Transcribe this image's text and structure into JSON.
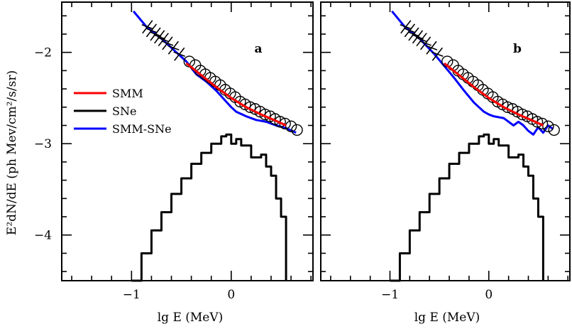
{
  "chart_data": {
    "type": "line",
    "xlabel": "lg E (MeV)",
    "ylabel": "E²dN/dE (ph Mev/cm²/s/sr)",
    "xlim": [
      -1.7,
      0.82
    ],
    "ylim": [
      -4.5,
      -1.45
    ],
    "x_ticks": [
      "-1",
      "0"
    ],
    "y_ticks": [
      "-2",
      "-3",
      "-4"
    ],
    "grid": false,
    "legend_placement": "left-middle (panel a)",
    "legend": [
      {
        "label": "SMM",
        "color": "#ff0000"
      },
      {
        "label": "SNe",
        "color": "#000000"
      },
      {
        "label": "SMM-SNe",
        "color": "#0000ff"
      }
    ],
    "panels": [
      {
        "label": "a",
        "series": [
          {
            "name": "SMM",
            "color": "#ff0000",
            "x": [
              -0.45,
              -0.3,
              -0.15,
              0.0,
              0.15,
              0.3,
              0.45,
              0.55
            ],
            "y": [
              -2.12,
              -2.25,
              -2.38,
              -2.5,
              -2.6,
              -2.68,
              -2.75,
              -2.8
            ]
          },
          {
            "name": "SMM-SNe",
            "color": "#0000ff",
            "x": [
              -0.98,
              -0.85,
              -0.7,
              -0.55,
              -0.45,
              -0.35,
              -0.25,
              -0.15,
              -0.05,
              0.0,
              0.05,
              0.15,
              0.25,
              0.35,
              0.45,
              0.55,
              0.65
            ],
            "y": [
              -1.55,
              -1.72,
              -1.85,
              -2.0,
              -2.1,
              -2.24,
              -2.32,
              -2.42,
              -2.54,
              -2.6,
              -2.65,
              -2.7,
              -2.74,
              -2.76,
              -2.8,
              -2.83,
              -2.88
            ]
          },
          {
            "name": "SNe",
            "color": "#000000",
            "style": "step",
            "x": [
              -1.0,
              -0.9,
              -0.8,
              -0.7,
              -0.6,
              -0.5,
              -0.4,
              -0.3,
              -0.2,
              -0.1,
              -0.05,
              0.0,
              0.05,
              0.1,
              0.2,
              0.3,
              0.35,
              0.4,
              0.45,
              0.5,
              0.55
            ],
            "y": [
              -4.5,
              -4.2,
              -3.95,
              -3.75,
              -3.55,
              -3.38,
              -3.22,
              -3.1,
              -3.0,
              -2.92,
              -2.9,
              -3.0,
              -2.95,
              -3.02,
              -3.15,
              -3.12,
              -3.25,
              -3.35,
              -3.6,
              -3.8,
              -4.5
            ]
          },
          {
            "name": "circles",
            "marker": "open-circle",
            "x": [
              -0.42,
              -0.36,
              -0.31,
              -0.26,
              -0.21,
              -0.16,
              -0.11,
              -0.06,
              -0.01,
              0.04,
              0.09,
              0.14,
              0.19,
              0.24,
              0.29,
              0.34,
              0.39,
              0.44,
              0.49,
              0.54,
              0.6,
              0.66
            ],
            "y": [
              -2.1,
              -2.14,
              -2.2,
              -2.24,
              -2.28,
              -2.32,
              -2.36,
              -2.41,
              -2.45,
              -2.49,
              -2.54,
              -2.57,
              -2.6,
              -2.62,
              -2.65,
              -2.68,
              -2.7,
              -2.73,
              -2.76,
              -2.78,
              -2.81,
              -2.85
            ]
          },
          {
            "name": "crosses",
            "marker": "x",
            "x": [
              -0.84,
              -0.8,
              -0.76,
              -0.72,
              -0.68,
              -0.64,
              -0.58,
              -0.52
            ],
            "y": [
              -1.72,
              -1.76,
              -1.8,
              -1.83,
              -1.86,
              -1.9,
              -1.95,
              -2.02
            ]
          }
        ]
      },
      {
        "label": "b",
        "series": [
          {
            "name": "SMM",
            "color": "#ff0000",
            "x": [
              -0.45,
              -0.3,
              -0.15,
              0.0,
              0.15,
              0.3,
              0.45,
              0.55
            ],
            "y": [
              -2.12,
              -2.25,
              -2.38,
              -2.5,
              -2.6,
              -2.68,
              -2.75,
              -2.8
            ]
          },
          {
            "name": "SMM-SNe",
            "color": "#0000ff",
            "x": [
              -0.98,
              -0.85,
              -0.7,
              -0.55,
              -0.45,
              -0.35,
              -0.25,
              -0.15,
              -0.1,
              -0.05,
              0.0,
              0.05,
              0.15,
              0.25,
              0.3,
              0.35,
              0.4,
              0.45,
              0.5,
              0.55,
              0.6,
              0.65
            ],
            "y": [
              -1.55,
              -1.72,
              -1.85,
              -2.02,
              -2.15,
              -2.28,
              -2.42,
              -2.55,
              -2.6,
              -2.65,
              -2.68,
              -2.7,
              -2.72,
              -2.8,
              -2.76,
              -2.8,
              -2.86,
              -2.9,
              -2.82,
              -2.88,
              -2.8,
              -2.84
            ]
          },
          {
            "name": "SNe",
            "color": "#000000",
            "style": "step",
            "x": [
              -1.0,
              -0.9,
              -0.8,
              -0.7,
              -0.6,
              -0.5,
              -0.4,
              -0.3,
              -0.2,
              -0.1,
              -0.05,
              0.0,
              0.05,
              0.1,
              0.2,
              0.3,
              0.35,
              0.4,
              0.45,
              0.5,
              0.55
            ],
            "y": [
              -4.5,
              -4.2,
              -3.95,
              -3.75,
              -3.55,
              -3.38,
              -3.22,
              -3.1,
              -3.0,
              -2.92,
              -2.9,
              -3.0,
              -2.95,
              -3.02,
              -3.15,
              -3.12,
              -3.25,
              -3.35,
              -3.6,
              -3.8,
              -4.5
            ]
          },
          {
            "name": "circles",
            "marker": "open-circle",
            "x": [
              -0.42,
              -0.36,
              -0.31,
              -0.26,
              -0.21,
              -0.16,
              -0.11,
              -0.06,
              -0.01,
              0.04,
              0.09,
              0.14,
              0.19,
              0.24,
              0.29,
              0.34,
              0.39,
              0.44,
              0.49,
              0.54,
              0.6,
              0.66
            ],
            "y": [
              -2.1,
              -2.14,
              -2.2,
              -2.24,
              -2.28,
              -2.32,
              -2.36,
              -2.41,
              -2.45,
              -2.49,
              -2.54,
              -2.57,
              -2.6,
              -2.62,
              -2.65,
              -2.68,
              -2.7,
              -2.73,
              -2.76,
              -2.78,
              -2.81,
              -2.85
            ]
          },
          {
            "name": "crosses",
            "marker": "x",
            "x": [
              -0.84,
              -0.8,
              -0.76,
              -0.72,
              -0.68,
              -0.64,
              -0.58,
              -0.52
            ],
            "y": [
              -1.72,
              -1.76,
              -1.8,
              -1.83,
              -1.86,
              -1.9,
              -1.95,
              -2.02
            ]
          }
        ]
      }
    ]
  }
}
